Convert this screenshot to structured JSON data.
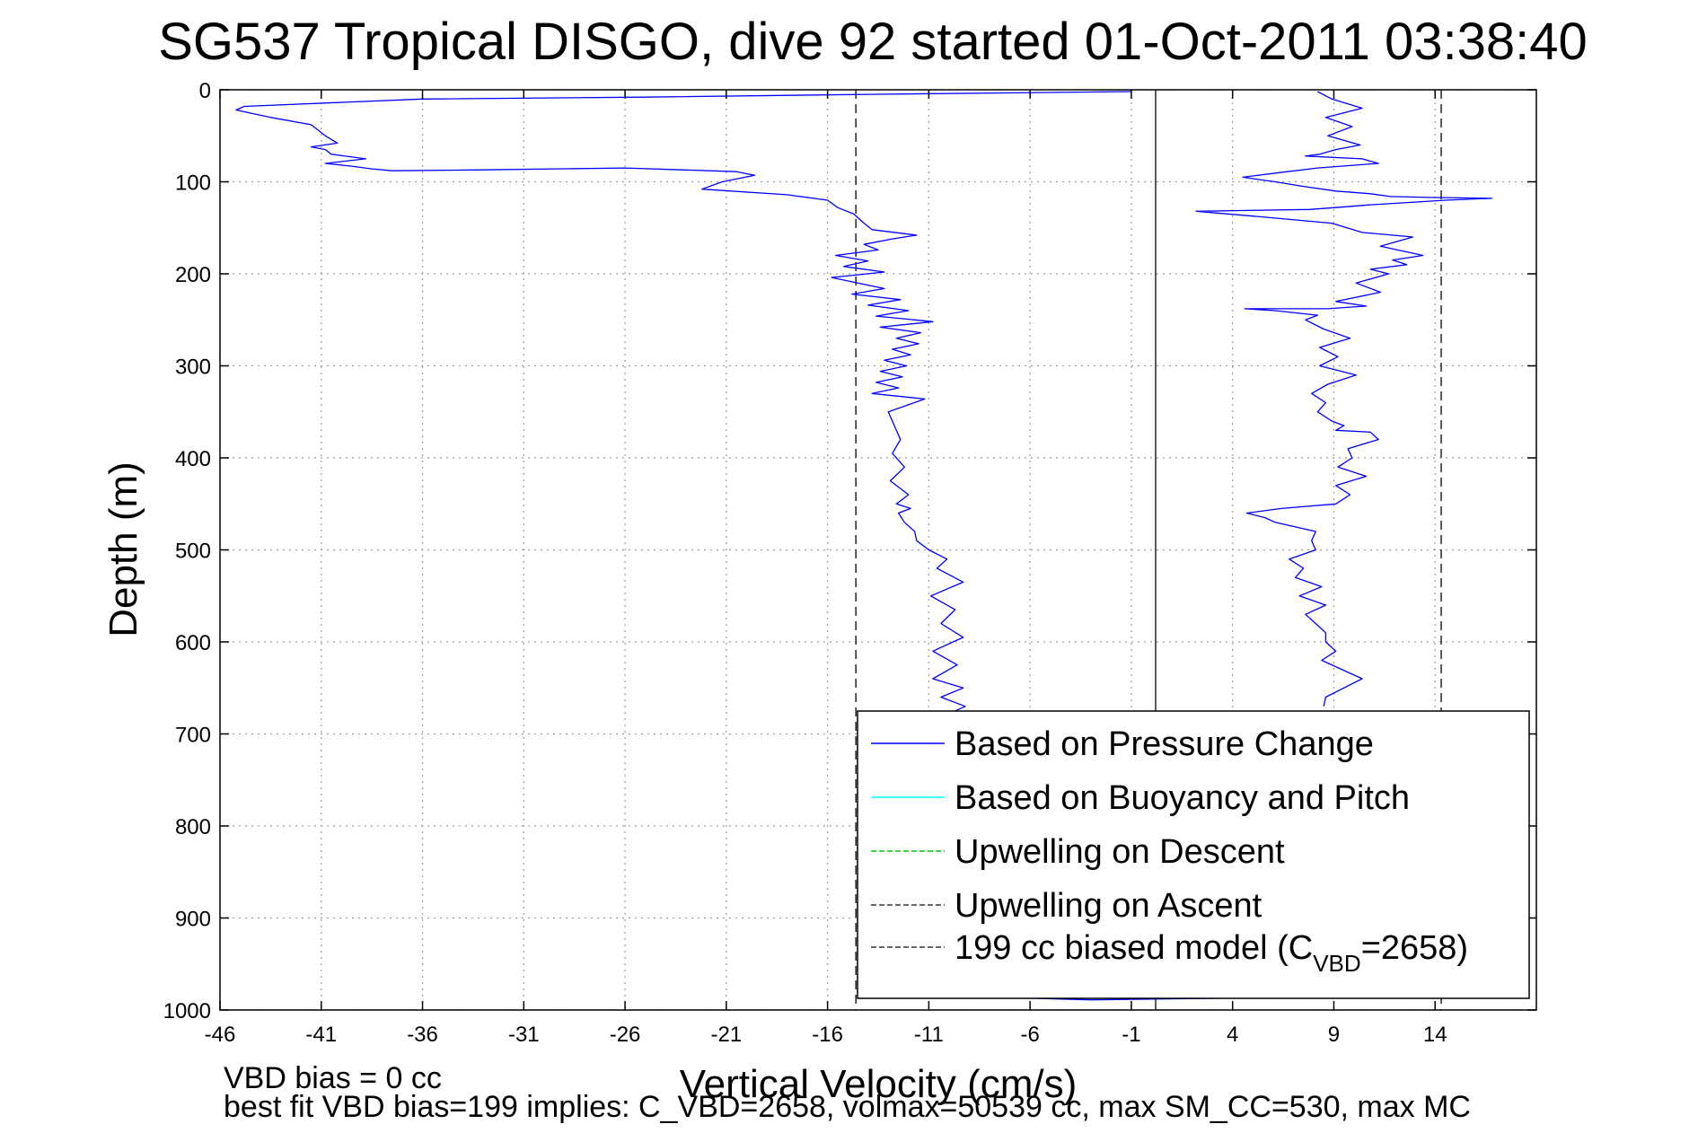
{
  "chart_data": {
    "type": "line",
    "title": "SG537 Tropical DISGO, dive 92 started 01-Oct-2011 03:38:40",
    "xlabel": "Vertical Velocity (cm/s)",
    "ylabel": "Depth (m)",
    "xlim": [
      -46,
      19
    ],
    "ylim": [
      0,
      1000
    ],
    "y_reversed": true,
    "grid": "dotted",
    "legend_placement": "bottom-right",
    "x_ticks": [
      "-46",
      "-41",
      "-36",
      "-31",
      "-26",
      "-21",
      "-16",
      "-11",
      "-6",
      "-1",
      "4",
      "9",
      "14"
    ],
    "x_tick_values": [
      -46,
      -41,
      -36,
      -31,
      -26,
      -21,
      -16,
      -11,
      -6,
      -1,
      4,
      9,
      14
    ],
    "y_ticks": [
      "0",
      "100",
      "200",
      "300",
      "400",
      "500",
      "600",
      "700",
      "800",
      "900",
      "1000"
    ],
    "y_tick_values": [
      0,
      100,
      200,
      300,
      400,
      500,
      600,
      700,
      800,
      900,
      1000
    ],
    "legend": [
      {
        "label": "Based on Pressure Change",
        "color": "#0000ff",
        "dash": "solid"
      },
      {
        "label": "Based on Buoyancy and Pitch",
        "color": "#00ffff",
        "dash": "solid"
      },
      {
        "label": "Upwelling on Descent",
        "color": "#00cc00",
        "dash": "dashed"
      },
      {
        "label": "Upwelling on Ascent",
        "color": "#333333",
        "dash": "dashed"
      },
      {
        "label_main": "199 cc biased model (C",
        "label_sub": "VBD",
        "label_end": "=2658)",
        "color": "#333333",
        "dash": "dashed"
      }
    ],
    "reference_lines": [
      {
        "x": -14.6,
        "style": "dashed"
      },
      {
        "x": 0.2,
        "style": "solid"
      },
      {
        "x": 14.3,
        "style": "dashed"
      }
    ],
    "series": [
      {
        "name": "Based on Pressure Change (descent)",
        "color": "#0000ff",
        "x": [
          -1,
          -14,
          -25,
          -36,
          -44.8,
          -45.2,
          -43.5,
          -41.5,
          -40.8,
          -40.2,
          -41.5,
          -40.8,
          -40.5,
          -38.8,
          -40.8,
          -39.5,
          -38.5,
          -37.5,
          -33,
          -26,
          -20.5,
          -19.6,
          -21.2,
          -22.2,
          -18,
          -16,
          -15.5,
          -14.7,
          -14.2,
          -13.8,
          -11.6,
          -12.8,
          -14.2,
          -13.5,
          -15.6,
          -14,
          -15.2,
          -13.2,
          -15.8,
          -14.5,
          -13.2,
          -14.8,
          -12.4,
          -14,
          -12,
          -13.6,
          -10.8,
          -13.4,
          -11.4,
          -12.6,
          -11.5,
          -12.8,
          -11.9,
          -13.2,
          -12.1,
          -13.4,
          -12.3,
          -13.6,
          -12.5,
          -13.8,
          -11.2,
          -13,
          -12.7,
          -12.4,
          -12.8,
          -12.2,
          -12.9,
          -12,
          -12.6,
          -11.9,
          -12.5,
          -12.2,
          -11.7,
          -11.6,
          -11,
          -10.1,
          -10.6,
          -9.3,
          -10.9,
          -9.7,
          -10.4,
          -9.3,
          -10.8,
          -9.6,
          -10.8,
          -9.3,
          -10.4,
          -9.2,
          -10.2,
          -9.4,
          -10.8
        ],
        "y": [
          2,
          5,
          8,
          10,
          18,
          22,
          30,
          38,
          50,
          58,
          62,
          65,
          70,
          75,
          80,
          83,
          86,
          88,
          87,
          85,
          89,
          93,
          100,
          108,
          114,
          120,
          128,
          135,
          145,
          152,
          158,
          162,
          168,
          174,
          180,
          186,
          192,
          198,
          204,
          210,
          216,
          222,
          228,
          234,
          240,
          246,
          252,
          258,
          264,
          270,
          276,
          282,
          288,
          294,
          300,
          306,
          312,
          318,
          324,
          330,
          336,
          350,
          365,
          380,
          395,
          410,
          425,
          440,
          450,
          455,
          460,
          470,
          480,
          490,
          500,
          510,
          520,
          535,
          550,
          565,
          580,
          595,
          610,
          625,
          640,
          650,
          660,
          670,
          680,
          690,
          700
        ]
      },
      {
        "name": "Based on Pressure Change (ascent)",
        "color": "#0000ff",
        "x": [
          8.2,
          8.9,
          10.4,
          8.6,
          9.9,
          8.7,
          10.3,
          9.1,
          8.3,
          7.6,
          10.4,
          11.2,
          8.2,
          6.3,
          4.5,
          6.1,
          7.5,
          9.1,
          10.8,
          11.8,
          13.7,
          16.8,
          14.5,
          13,
          10.8,
          9.1,
          7.8,
          2.2,
          5.4,
          8.9,
          10.4,
          12.9,
          11.3,
          13.4,
          11.9,
          12.6,
          10.8,
          11.7,
          10.1,
          11.3,
          9.1,
          10.6,
          8.7,
          4.6,
          6.1,
          8.2,
          7.6,
          8.5,
          9.8,
          8.3,
          9.2,
          8.3,
          10.1,
          8.7,
          7.9,
          8.6,
          8.2,
          8.9,
          9.5,
          9.1,
          10.8,
          11.2,
          9.7,
          9.9,
          9.2,
          10.6,
          9.1,
          9.8,
          9.1,
          6.4,
          4.7,
          5.6,
          6.1,
          8.1,
          7.9,
          8.1,
          6.8,
          7.5,
          7.1,
          8.4,
          7.3,
          8.6,
          7.6,
          8.1,
          8.6,
          8.6,
          9.1,
          8.4,
          10.4,
          8.6,
          8.5
        ],
        "y": [
          2,
          10,
          20,
          30,
          40,
          50,
          60,
          65,
          70,
          72,
          75,
          80,
          85,
          90,
          95,
          100,
          105,
          110,
          113,
          116,
          117,
          118,
          120,
          122,
          125,
          128,
          130,
          132,
          138,
          145,
          155,
          160,
          170,
          180,
          185,
          190,
          195,
          200,
          210,
          220,
          230,
          235,
          238,
          238,
          240,
          245,
          250,
          260,
          270,
          280,
          290,
          300,
          310,
          320,
          330,
          340,
          350,
          360,
          365,
          370,
          372,
          380,
          390,
          400,
          410,
          420,
          430,
          440,
          450,
          455,
          460,
          465,
          470,
          480,
          490,
          500,
          510,
          520,
          530,
          540,
          550,
          560,
          570,
          580,
          590,
          600,
          610,
          620,
          640,
          660,
          670
        ]
      },
      {
        "name": "Based on Pressure Change (bottom)",
        "color": "#0000ff",
        "x": [
          -9.5,
          -3,
          4,
          7.2
        ],
        "y": [
          985,
          989,
          987,
          984
        ]
      }
    ]
  },
  "footer": {
    "line1": "VBD bias = 0 cc",
    "line2": "best fit VBD bias=199 implies: C_VBD=2658, volmax=50539 cc, max SM_CC=530, max MC"
  }
}
